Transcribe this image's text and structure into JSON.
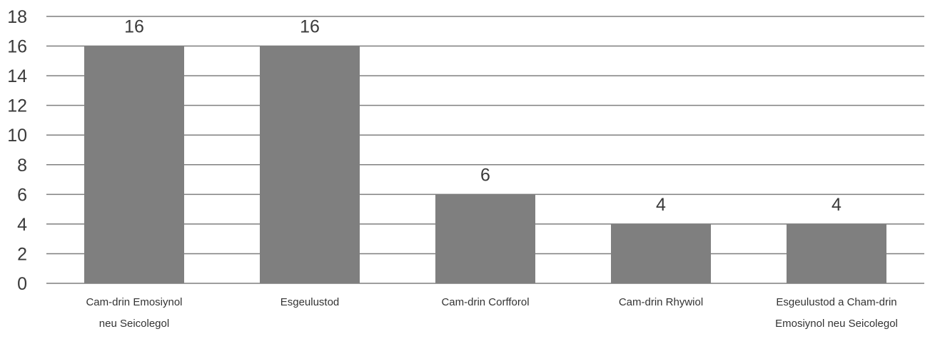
{
  "chart_data": {
    "type": "bar",
    "title": "",
    "xlabel": "",
    "ylabel": "",
    "categories": [
      [
        "Cam-drin Emosiynol",
        "neu Seicolegol"
      ],
      [
        "Esgeulustod"
      ],
      [
        "Cam-drin Corfforol"
      ],
      [
        "Cam-drin Rhywiol"
      ],
      [
        "Esgeulustod a Cham-drin",
        "Emosiynol neu Seicolegol"
      ]
    ],
    "values": [
      16,
      16,
      6,
      4,
      4
    ],
    "data_labels": [
      "16",
      "16",
      "6",
      "4",
      "4"
    ],
    "ylim": [
      0,
      18
    ],
    "yticks": [
      0,
      2,
      4,
      6,
      8,
      10,
      12,
      14,
      16,
      18
    ],
    "grid": true,
    "legend": "none",
    "colors": {
      "bar": "#7f7f7f",
      "grid": "#7f7f7f",
      "text": "#3a3a3a"
    }
  }
}
